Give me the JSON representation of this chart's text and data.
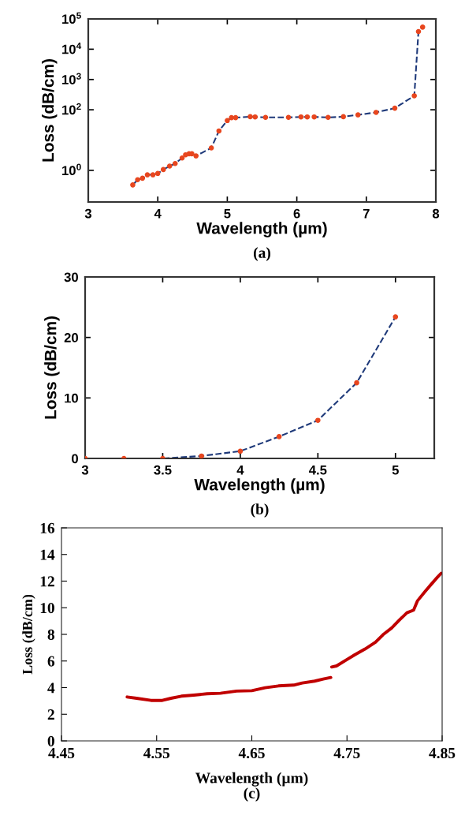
{
  "chart_data": [
    {
      "type": "line",
      "xlabel": "Wavelength (µm)",
      "ylabel": "Loss (dB/cm)",
      "annotations": [
        "(a)"
      ],
      "log": "y",
      "xlim": [
        3,
        8
      ],
      "xticks": [
        3,
        4,
        5,
        6,
        7,
        8
      ],
      "ylim": [
        0.09,
        100000
      ],
      "yticks": [
        {
          "value": 1,
          "label": "10$^{0}$"
        },
        {
          "value": 100,
          "label": "10$^{2}$"
        },
        {
          "value": 1000,
          "label": "10$^{3}$"
        },
        {
          "value": 10000,
          "label": "10$^{4}$"
        },
        {
          "value": 100000,
          "label": "10$^{5}$"
        }
      ],
      "x": [
        3.64,
        3.71,
        3.78,
        3.85,
        3.93,
        4.0,
        4.08,
        4.17,
        4.25,
        4.35,
        4.4,
        4.45,
        4.49,
        4.55,
        4.77,
        4.88,
        5.0,
        5.06,
        5.12,
        5.33,
        5.4,
        5.55,
        5.88,
        6.06,
        6.15,
        6.25,
        6.45,
        6.67,
        6.88,
        7.14,
        7.41,
        7.69,
        7.75,
        7.81
      ],
      "series": [
        {
          "color": "#1f3a7a",
          "line_style": "dashed",
          "marker": "none",
          "values": [
            0.33,
            0.49,
            0.55,
            0.71,
            0.71,
            0.79,
            1.06,
            1.38,
            1.68,
            2.56,
            3.26,
            3.53,
            3.53,
            3.0,
            5.5,
            20,
            44,
            55,
            55,
            59,
            58,
            56,
            56,
            58,
            58,
            58,
            56,
            59,
            68,
            82,
            113,
            289,
            38300,
            53700
          ]
        },
        {
          "type": "scatter",
          "color": "#e8461e",
          "marker": "circle",
          "values": [
            0.33,
            0.49,
            0.55,
            0.71,
            0.71,
            0.79,
            1.06,
            1.38,
            1.68,
            2.56,
            3.26,
            3.53,
            3.53,
            3.0,
            5.5,
            20,
            44,
            55,
            55,
            59,
            58,
            56,
            56,
            58,
            58,
            58,
            56,
            59,
            68,
            82,
            113,
            289,
            38300,
            53700
          ]
        }
      ],
      "grid": false,
      "legend": false
    },
    {
      "type": "line",
      "xlabel": "Wavelength (µm)",
      "ylabel": "Loss (dB/cm)",
      "annotations": [
        "(b)"
      ],
      "xlim": [
        3,
        5.25
      ],
      "xticks": [
        3,
        3.5,
        4,
        4.5,
        5
      ],
      "ylim": [
        0,
        30
      ],
      "yticks": [
        0,
        10,
        20,
        30
      ],
      "x": [
        3,
        3.25,
        3.5,
        3.75,
        4,
        4.25,
        4.5,
        4.75,
        5
      ],
      "series": [
        {
          "color": "#1f3a7a",
          "line_style": "dashed",
          "marker": "none",
          "values": [
            0,
            0,
            0,
            0.4,
            1.2,
            3.6,
            6.3,
            12.5,
            23.4
          ]
        },
        {
          "type": "scatter",
          "color": "#e8461e",
          "marker": "circle",
          "values": [
            0,
            0,
            0,
            0.4,
            1.2,
            3.6,
            6.3,
            12.5,
            23.4
          ]
        }
      ],
      "grid": false,
      "legend": false
    },
    {
      "type": "line",
      "xlabel": "Wavelength (µm)",
      "ylabel": "Loss (dB/cm)",
      "annotations": [
        "(c)"
      ],
      "xlim": [
        4.45,
        4.85
      ],
      "xticks": [
        {
          "value": 4.45,
          "label": "4.45"
        },
        {
          "value": 4.55,
          "label": "4.55"
        },
        {
          "value": 4.65,
          "label": "4.65"
        },
        {
          "value": 4.75,
          "label": "4.75"
        },
        {
          "value": 4.85,
          "label": "4.85"
        }
      ],
      "ylim": [
        0,
        16
      ],
      "yticks": [
        0,
        2,
        4,
        6,
        8,
        10,
        12,
        14,
        16
      ],
      "x": [
        4.519,
        4.529,
        4.544,
        4.556,
        4.565,
        4.576,
        4.589,
        4.603,
        4.617,
        4.634,
        4.65,
        4.664,
        4.678,
        4.694,
        4.703,
        4.716,
        4.725,
        4.733,
        4.7335,
        4.734,
        4.739,
        4.75,
        4.758,
        4.769,
        4.78,
        4.788,
        4.797,
        4.805,
        4.813,
        4.82,
        4.824,
        4.832,
        4.839,
        4.845,
        4.849
      ],
      "series": [
        {
          "color": "#c00000",
          "line_style": "solid",
          "marker": "none",
          "values": [
            3.3,
            3.2,
            3.04,
            3.04,
            3.2,
            3.36,
            3.44,
            3.54,
            3.58,
            3.74,
            3.77,
            3.99,
            4.13,
            4.19,
            4.35,
            4.49,
            4.64,
            4.76,
            null,
            5.55,
            5.63,
            6.11,
            6.46,
            6.9,
            7.41,
            7.98,
            8.48,
            9.07,
            9.62,
            9.82,
            10.51,
            11.21,
            11.8,
            12.29,
            12.59
          ]
        }
      ],
      "grid": false,
      "legend": false
    }
  ]
}
